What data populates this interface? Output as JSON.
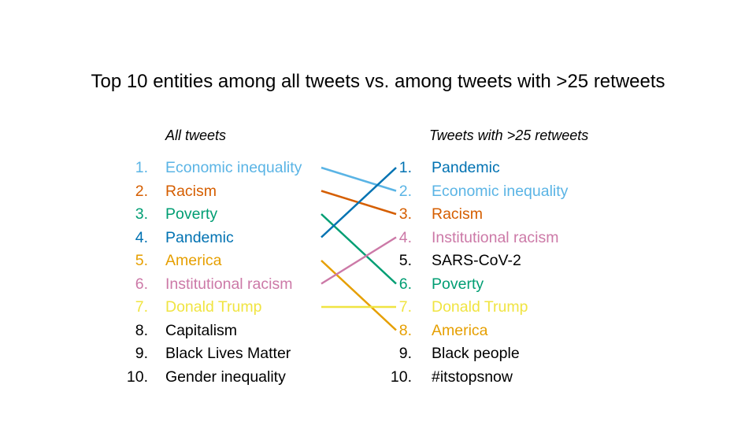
{
  "title": "Top 10 entities among all tweets vs. among tweets with >25 retweets",
  "left_heading": "All tweets",
  "right_heading": "Tweets with >25 retweets",
  "colors": {
    "economic": "#5ab4e5",
    "racism": "#d55e00",
    "poverty": "#009e73",
    "pandemic": "#0072b2",
    "america": "#e69f00",
    "institutional": "#cc79a7",
    "trump": "#f0e442",
    "other": "#000000"
  },
  "left": [
    {
      "rank": "1.",
      "label": "Economic inequality",
      "color": "economic",
      "match": 1
    },
    {
      "rank": "2.",
      "label": "Racism",
      "color": "racism",
      "match": 2
    },
    {
      "rank": "3.",
      "label": "Poverty",
      "color": "poverty",
      "match": 5
    },
    {
      "rank": "4.",
      "label": "Pandemic",
      "color": "pandemic",
      "match": 0
    },
    {
      "rank": "5.",
      "label": "America",
      "color": "america",
      "match": 7
    },
    {
      "rank": "6.",
      "label": "Institutional racism",
      "color": "institutional",
      "match": 3
    },
    {
      "rank": "7.",
      "label": "Donald Trump",
      "color": "trump",
      "match": 6
    },
    {
      "rank": "8.",
      "label": "Capitalism",
      "color": "other",
      "match": null
    },
    {
      "rank": "9.",
      "label": "Black Lives Matter",
      "color": "other",
      "match": null
    },
    {
      "rank": "10.",
      "label": "Gender inequality",
      "color": "other",
      "match": null
    }
  ],
  "right": [
    {
      "rank": "1.",
      "label": "Pandemic",
      "color": "pandemic"
    },
    {
      "rank": "2.",
      "label": "Economic inequality",
      "color": "economic"
    },
    {
      "rank": "3.",
      "label": "Racism",
      "color": "racism"
    },
    {
      "rank": "4.",
      "label": "Institutional racism",
      "color": "institutional"
    },
    {
      "rank": "5.",
      "label": "SARS-CoV-2",
      "color": "other"
    },
    {
      "rank": "6.",
      "label": "Poverty",
      "color": "poverty"
    },
    {
      "rank": "7.",
      "label": "Donald Trump",
      "color": "trump"
    },
    {
      "rank": "8.",
      "label": "America",
      "color": "america"
    },
    {
      "rank": "9.",
      "label": "Black people",
      "color": "other"
    },
    {
      "rank": "10.",
      "label": "#itstopsnow",
      "color": "other"
    }
  ]
}
